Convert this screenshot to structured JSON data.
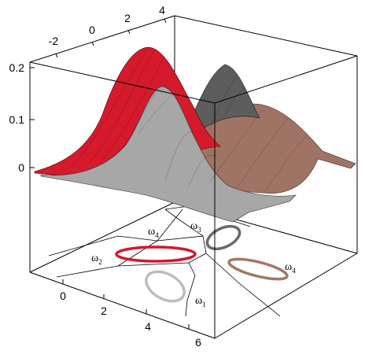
{
  "axes": {
    "top_ticks": [
      "-2",
      "0",
      "2",
      "4"
    ],
    "z_ticks": [
      "0.2",
      "0.1",
      "0"
    ],
    "bottom_ticks": [
      "0",
      "2",
      "4",
      "6"
    ]
  },
  "regions": [
    {
      "symbol": "ω",
      "sub": "1",
      "color": "#b9b9b9"
    },
    {
      "symbol": "ω",
      "sub": "2",
      "color": "#d9192c"
    },
    {
      "symbol": "ω",
      "sub": "3",
      "color": "#6f6f6f"
    },
    {
      "symbol": "ω",
      "sub": "4",
      "color": "#a57765"
    }
  ],
  "colors": {
    "red": "#d6172a",
    "gray": "#a9a9a9",
    "dark": "#5b5b5b",
    "brown": "#9a6f5f"
  }
}
